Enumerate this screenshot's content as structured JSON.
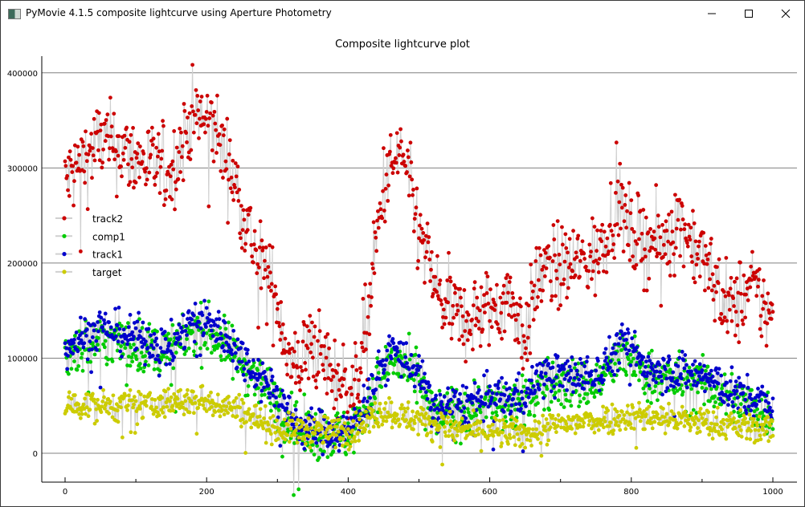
{
  "window": {
    "title": "PyMovie 4.1.5 composite lightcurve using Aperture Photometry"
  },
  "chart_data": {
    "type": "scatter",
    "title": "Composite lightcurve plot",
    "xlabel": "",
    "ylabel": "",
    "xlim": [
      -30,
      1030
    ],
    "ylim": [
      -60000,
      400000
    ],
    "x_ticks": [
      "0",
      "200",
      "400",
      "600",
      "800",
      "1000"
    ],
    "y_ticks": [
      "0",
      "100000",
      "200000",
      "300000",
      "400000"
    ],
    "grid": "horizontal",
    "legend_position": "middle-left",
    "frames": [
      0,
      1000
    ],
    "series": [
      {
        "name": "track2",
        "color": "#cc0000",
        "noise": 22000,
        "trend": [
          [
            0,
            285000
          ],
          [
            50,
            330000
          ],
          [
            100,
            310000
          ],
          [
            150,
            295000
          ],
          [
            180,
            355000
          ],
          [
            210,
            345000
          ],
          [
            240,
            285000
          ],
          [
            270,
            210000
          ],
          [
            300,
            160000
          ],
          [
            320,
            85000
          ],
          [
            350,
            115000
          ],
          [
            380,
            80000
          ],
          [
            410,
            65000
          ],
          [
            430,
            160000
          ],
          [
            450,
            280000
          ],
          [
            475,
            320000
          ],
          [
            500,
            230000
          ],
          [
            530,
            160000
          ],
          [
            560,
            140000
          ],
          [
            600,
            150000
          ],
          [
            630,
            165000
          ],
          [
            650,
            120000
          ],
          [
            670,
            190000
          ],
          [
            700,
            195000
          ],
          [
            750,
            205000
          ],
          [
            780,
            265000
          ],
          [
            800,
            230000
          ],
          [
            840,
            220000
          ],
          [
            870,
            245000
          ],
          [
            900,
            205000
          ],
          [
            940,
            150000
          ],
          [
            970,
            175000
          ],
          [
            1000,
            140000
          ]
        ]
      },
      {
        "name": "comp1",
        "color": "#00cc00",
        "noise": 14000,
        "trend": [
          [
            0,
            105000
          ],
          [
            50,
            120000
          ],
          [
            100,
            112000
          ],
          [
            150,
            105000
          ],
          [
            180,
            130000
          ],
          [
            210,
            125000
          ],
          [
            250,
            95000
          ],
          [
            300,
            55000
          ],
          [
            330,
            22000
          ],
          [
            400,
            18000
          ],
          [
            430,
            55000
          ],
          [
            460,
            100000
          ],
          [
            500,
            75000
          ],
          [
            520,
            40000
          ],
          [
            600,
            50000
          ],
          [
            650,
            50000
          ],
          [
            670,
            72000
          ],
          [
            750,
            72000
          ],
          [
            790,
            105000
          ],
          [
            820,
            82000
          ],
          [
            900,
            72000
          ],
          [
            950,
            55000
          ],
          [
            1000,
            40000
          ]
        ]
      },
      {
        "name": "track1",
        "color": "#0000cc",
        "noise": 11000,
        "trend": [
          [
            0,
            112000
          ],
          [
            50,
            132000
          ],
          [
            100,
            122000
          ],
          [
            150,
            112000
          ],
          [
            180,
            142000
          ],
          [
            210,
            136000
          ],
          [
            250,
            102000
          ],
          [
            300,
            62000
          ],
          [
            330,
            26000
          ],
          [
            400,
            22000
          ],
          [
            430,
            62000
          ],
          [
            460,
            112000
          ],
          [
            500,
            84000
          ],
          [
            520,
            46000
          ],
          [
            600,
            58000
          ],
          [
            650,
            60000
          ],
          [
            670,
            82000
          ],
          [
            750,
            82000
          ],
          [
            790,
            118000
          ],
          [
            820,
            92000
          ],
          [
            900,
            82000
          ],
          [
            950,
            62000
          ],
          [
            1000,
            48000
          ]
        ]
      },
      {
        "name": "target",
        "color": "#cccc00",
        "noise": 8000,
        "trend": [
          [
            0,
            50000
          ],
          [
            100,
            50000
          ],
          [
            200,
            56000
          ],
          [
            250,
            45000
          ],
          [
            300,
            25000
          ],
          [
            400,
            22000
          ],
          [
            450,
            45000
          ],
          [
            500,
            35000
          ],
          [
            550,
            25000
          ],
          [
            650,
            20000
          ],
          [
            700,
            30000
          ],
          [
            800,
            40000
          ],
          [
            900,
            33000
          ],
          [
            1000,
            25000
          ]
        ]
      }
    ]
  }
}
